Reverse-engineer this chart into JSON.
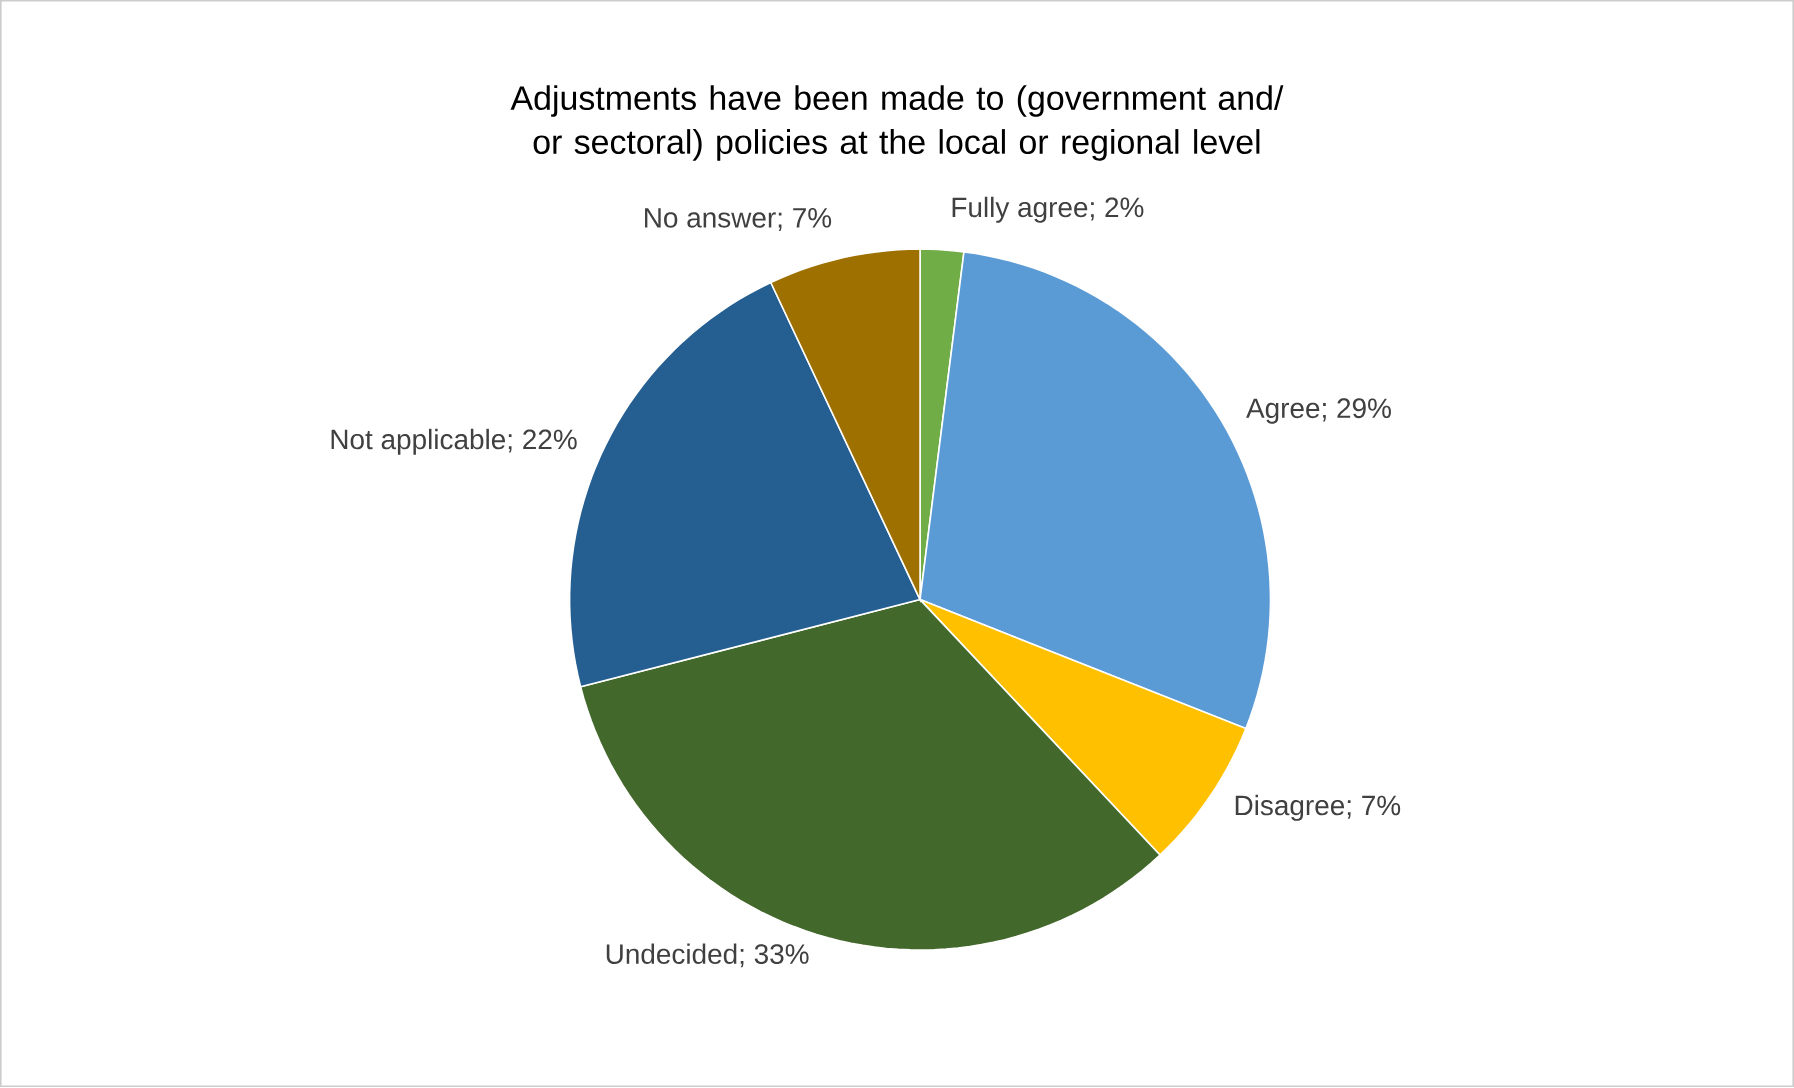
{
  "chart_data": {
    "type": "pie",
    "title": "Adjustments have been made to (government and/ or sectoral) policies at the local or regional level",
    "categories": [
      null,
      null,
      null,
      null,
      null,
      null
    ],
    "values": [
      2,
      29,
      7,
      33,
      22,
      7
    ],
    "value_labels": [
      "Fully agree; 2%",
      "Agree; 29%",
      "Disagree; 7%",
      "Undecided; 33%",
      "Not applicable; 22%",
      "No answer; 7%"
    ],
    "colors": [
      "#70ad47",
      "#5b9bd5",
      "#ffc000",
      "#43682b",
      "#255e91",
      "#9e7000"
    ]
  }
}
